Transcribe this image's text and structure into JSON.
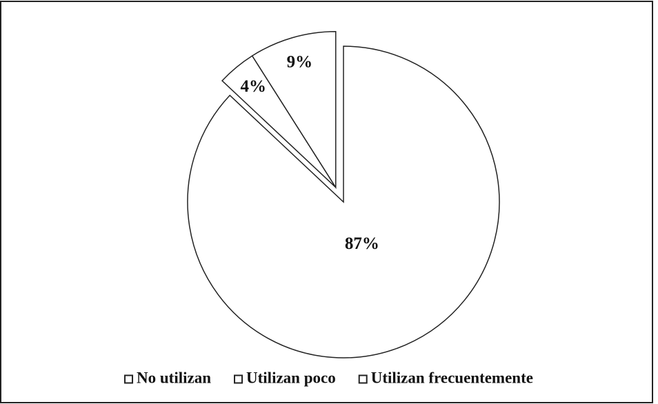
{
  "chart_data": {
    "type": "pie",
    "categories": [
      "No utilizan",
      "Utilizan poco",
      "Utilizan frecuentemente"
    ],
    "values": [
      87,
      4,
      9
    ],
    "value_labels": [
      "87%",
      "4%",
      "9%"
    ],
    "colors": [
      "#ffffff",
      "#ffffff",
      "#ffffff"
    ],
    "explode": [
      false,
      true,
      true
    ],
    "legend": "bottom"
  }
}
